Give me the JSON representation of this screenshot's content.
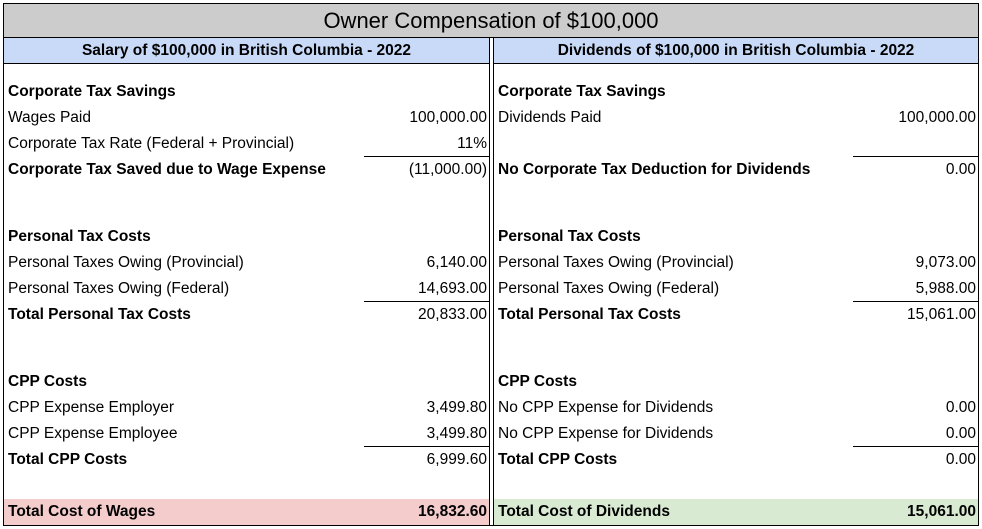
{
  "title": "Owner Compensation of $100,000",
  "left": {
    "header": "Salary of $100,000 in British Columbia - 2022",
    "rows": [
      {
        "label": "Corporate Tax Savings",
        "value": ""
      },
      {
        "label": "Wages Paid",
        "value": "100,000.00"
      },
      {
        "label": "Corporate Tax Rate (Federal + Provincial)",
        "value": "11%"
      },
      {
        "label": "Corporate Tax Saved due to Wage Expense",
        "value": "(11,000.00)"
      },
      {
        "label": "Personal Tax Costs",
        "value": ""
      },
      {
        "label": "Personal Taxes Owing (Provincial)",
        "value": "6,140.00"
      },
      {
        "label": "Personal Taxes Owing (Federal)",
        "value": "14,693.00"
      },
      {
        "label": "Total Personal Tax Costs",
        "value": "20,833.00"
      },
      {
        "label": "CPP Costs",
        "value": ""
      },
      {
        "label": "CPP Expense Employer",
        "value": "3,499.80"
      },
      {
        "label": "CPP Expense Employee",
        "value": "3,499.80"
      },
      {
        "label": "Total CPP Costs",
        "value": "6,999.60"
      },
      {
        "label": "Total Cost of Wages",
        "value": "16,832.60"
      }
    ]
  },
  "right": {
    "header": "Dividends of $100,000 in British Columbia - 2022",
    "rows": [
      {
        "label": "Corporate Tax Savings",
        "value": ""
      },
      {
        "label": "Dividends Paid",
        "value": "100,000.00"
      },
      {
        "label": "",
        "value": ""
      },
      {
        "label": "No Corporate Tax Deduction for Dividends",
        "value": "0.00"
      },
      {
        "label": "Personal Tax Costs",
        "value": ""
      },
      {
        "label": "Personal Taxes Owing (Provincial)",
        "value": "9,073.00"
      },
      {
        "label": "Personal Taxes Owing (Federal)",
        "value": "5,988.00"
      },
      {
        "label": "Total Personal Tax Costs",
        "value": "15,061.00"
      },
      {
        "label": "CPP Costs",
        "value": ""
      },
      {
        "label": "No CPP Expense for Dividends",
        "value": "0.00"
      },
      {
        "label": "No CPP Expense for Dividends",
        "value": "0.00"
      },
      {
        "label": "Total CPP Costs",
        "value": "0.00"
      },
      {
        "label": "Total Cost of Dividends",
        "value": "15,061.00"
      }
    ]
  },
  "colors": {
    "title_bg": "#cccccc",
    "header_bg": "#c9daf8",
    "wages_total_bg": "#f4cccc",
    "dividends_total_bg": "#d9ead3"
  }
}
